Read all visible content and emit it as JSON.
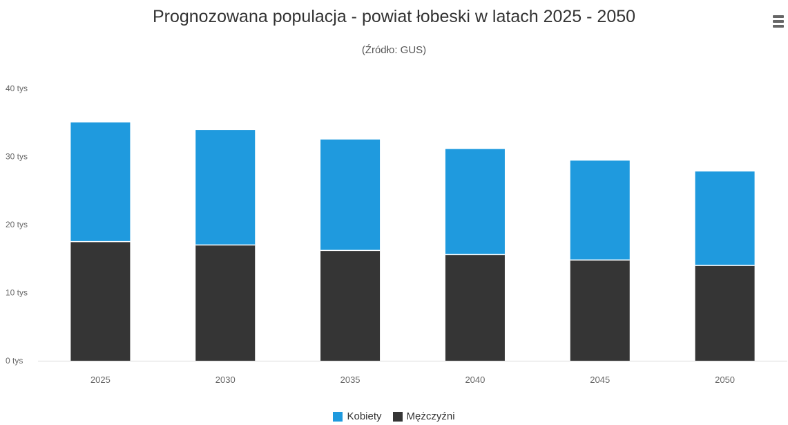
{
  "header": {
    "title": "Prognozowana populacja - powiat łobeski w latach 2025 - 2050",
    "subtitle": "(Źródło: GUS)",
    "menu_icon": "hamburger-menu-icon"
  },
  "colors": {
    "kobiety": "#1f9ade",
    "mezczyzni": "#353535",
    "axis_label": "#666666",
    "baseline": "#d8d8d8"
  },
  "legend": {
    "items": [
      {
        "label": "Kobiety",
        "color": "#1f9ade"
      },
      {
        "label": "Mężczyźni",
        "color": "#353535"
      }
    ],
    "placement": "bottom-center"
  },
  "chart_data": {
    "type": "bar",
    "stacked": true,
    "title": "Prognozowana populacja - powiat łobeski w latach 2025 - 2050",
    "subtitle": "(Źródło: GUS)",
    "categories": [
      "2025",
      "2030",
      "2035",
      "2040",
      "2045",
      "2050"
    ],
    "series": [
      {
        "name": "Kobiety",
        "color": "#1f9ade",
        "values": [
          17500,
          16900,
          16300,
          15500,
          14600,
          13800
        ]
      },
      {
        "name": "Mężczyźni",
        "color": "#353535",
        "values": [
          17500,
          17000,
          16200,
          15600,
          14800,
          14000
        ]
      }
    ],
    "y_ticks": [
      "0 tys",
      "10 tys",
      "20 tys",
      "30 tys",
      "40 tys"
    ],
    "y_tick_values": [
      0,
      10000,
      20000,
      30000,
      40000
    ],
    "ylim": [
      0,
      40000
    ],
    "grid": false,
    "legend_placement": "bottom"
  }
}
